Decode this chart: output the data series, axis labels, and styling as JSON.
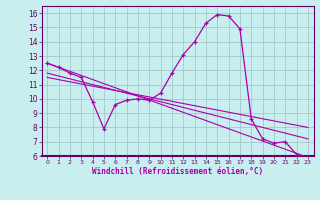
{
  "xlabel": "Windchill (Refroidissement éolien,°C)",
  "bg_color": "#c8eef0",
  "grid_color": "#9dbfbf",
  "line_color": "#aa00aa",
  "xlim": [
    -0.5,
    23.5
  ],
  "ylim": [
    6,
    16.5
  ],
  "xticks": [
    0,
    1,
    2,
    3,
    4,
    5,
    6,
    7,
    8,
    9,
    10,
    11,
    12,
    13,
    14,
    15,
    16,
    17,
    18,
    19,
    20,
    21,
    22,
    23
  ],
  "yticks": [
    6,
    7,
    8,
    9,
    10,
    11,
    12,
    13,
    14,
    15,
    16
  ],
  "main_x": [
    0,
    1,
    2,
    3,
    4,
    5,
    6,
    7,
    8,
    9,
    10,
    11,
    12,
    13,
    14,
    15,
    16,
    17,
    18,
    19,
    20,
    21,
    22,
    23
  ],
  "main_y": [
    12.5,
    12.2,
    11.8,
    11.5,
    9.8,
    7.9,
    9.6,
    9.9,
    10.0,
    9.9,
    10.4,
    11.8,
    13.1,
    14.0,
    15.3,
    15.9,
    15.8,
    14.9,
    8.6,
    7.2,
    6.9,
    7.0,
    6.1,
    5.9
  ],
  "line2_x": [
    0,
    23
  ],
  "line2_y": [
    12.5,
    5.9
  ],
  "line3_x": [
    0,
    23
  ],
  "line3_y": [
    11.8,
    7.2
  ],
  "line4_x": [
    0,
    23
  ],
  "line4_y": [
    11.5,
    8.0
  ]
}
